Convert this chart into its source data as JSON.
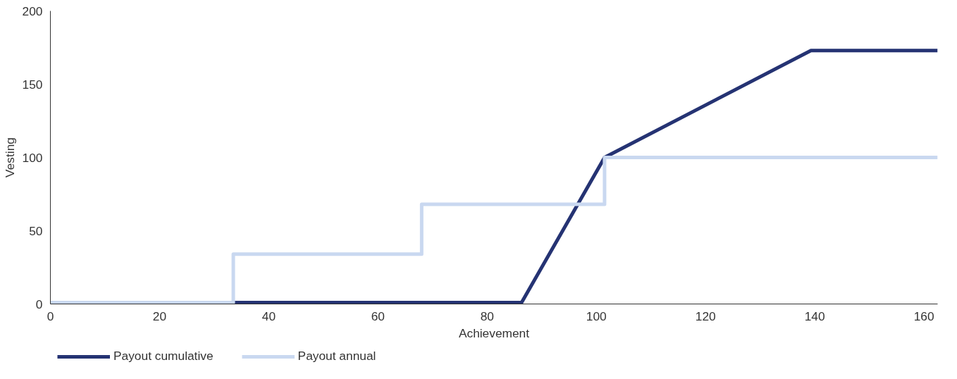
{
  "chart_data": {
    "type": "line",
    "xlabel": "Achievement",
    "ylabel": "Vesting",
    "xlim": [
      0,
      162.5
    ],
    "xticks": [
      0,
      20,
      40,
      60,
      80,
      100,
      120,
      140,
      160
    ],
    "ylim": [
      0,
      200
    ],
    "yticks": [
      0,
      50,
      100,
      150,
      200
    ],
    "grid": false,
    "legend": "bottom left",
    "marker": "none",
    "line_style": "solid",
    "series": [
      {
        "name": "Payout cumulative",
        "color": "#253373",
        "type": "line",
        "x": [
          0,
          86.3,
          101.5,
          139.3,
          162.5
        ],
        "values": [
          1,
          1,
          100,
          173,
          173
        ]
      },
      {
        "name": "Payout annual",
        "color": "#c9d8f0",
        "type": "step",
        "x": [
          0,
          33.5,
          68,
          101.5,
          162.5
        ],
        "values": [
          1,
          34,
          68,
          100,
          100
        ]
      }
    ]
  }
}
